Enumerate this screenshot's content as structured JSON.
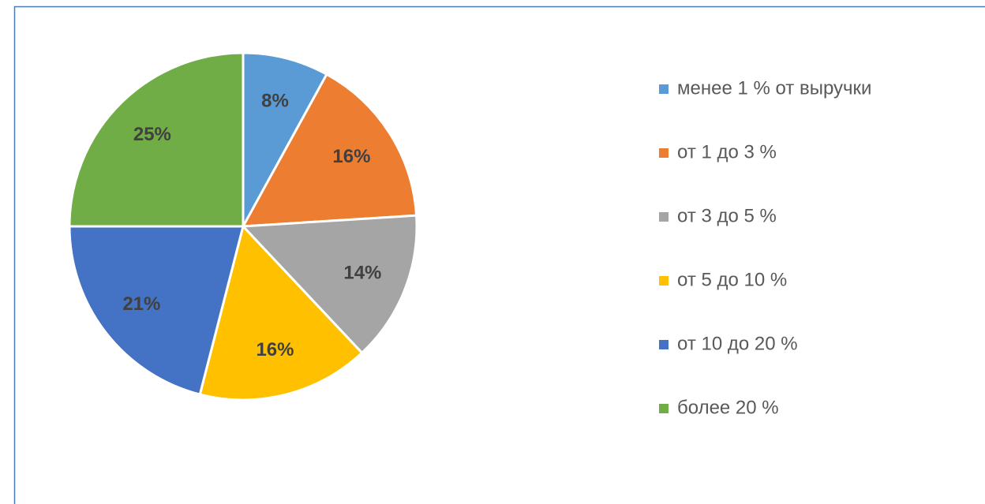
{
  "chart_data": {
    "type": "pie",
    "categories": [
      "менее 1 % от выручки",
      "от 1 до 3 %",
      "от 3 до 5 %",
      "от 5 до 10 %",
      "от 10 до 20 %",
      "более 20 %"
    ],
    "values": [
      8,
      16,
      14,
      16,
      21,
      25
    ],
    "value_labels": [
      "8%",
      "16%",
      "14%",
      "16%",
      "21%",
      "25%"
    ],
    "colors": [
      "#5b9bd5",
      "#ed7d31",
      "#a5a5a5",
      "#ffc000",
      "#4472c4",
      "#70ad47"
    ],
    "legend": "right"
  }
}
